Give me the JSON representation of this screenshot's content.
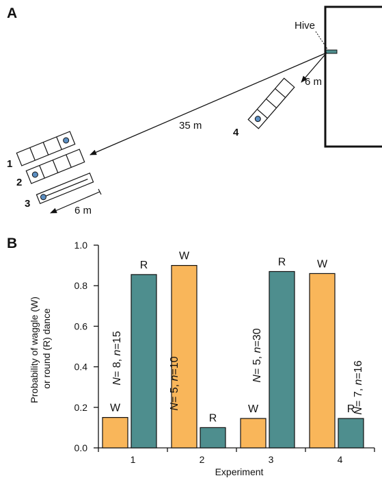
{
  "panel_a": {
    "letter": "A",
    "hive_label": "Hive",
    "dist_long": "35 m",
    "dist_short": "6 m",
    "dist_tunnel": "6 m",
    "tunnel_numbers": [
      "1",
      "2",
      "3",
      "4"
    ]
  },
  "panel_b": {
    "letter": "B"
  },
  "chart_data": {
    "type": "bar",
    "categories": [
      "1",
      "2",
      "3",
      "4"
    ],
    "xlabel": "Experiment",
    "ylabel_lines": [
      "Probability of waggle (W)",
      "or round (R) dance"
    ],
    "ylim": [
      0,
      1
    ],
    "yticks": [
      "0.0",
      "0.2",
      "0.4",
      "0.6",
      "0.8",
      "1.0"
    ],
    "series": [
      {
        "name": "W",
        "color": "#F9B65A",
        "values": [
          0.15,
          0.9,
          0.145,
          0.86
        ]
      },
      {
        "name": "R",
        "color": "#4E8E8E",
        "values": [
          0.855,
          0.1,
          0.87,
          0.145
        ]
      }
    ],
    "sample_labels": [
      {
        "N": "8",
        "n": "15"
      },
      {
        "N": "5",
        "n": "10"
      },
      {
        "N": "5",
        "n": "30"
      },
      {
        "N": "7",
        "n": "16"
      }
    ]
  }
}
